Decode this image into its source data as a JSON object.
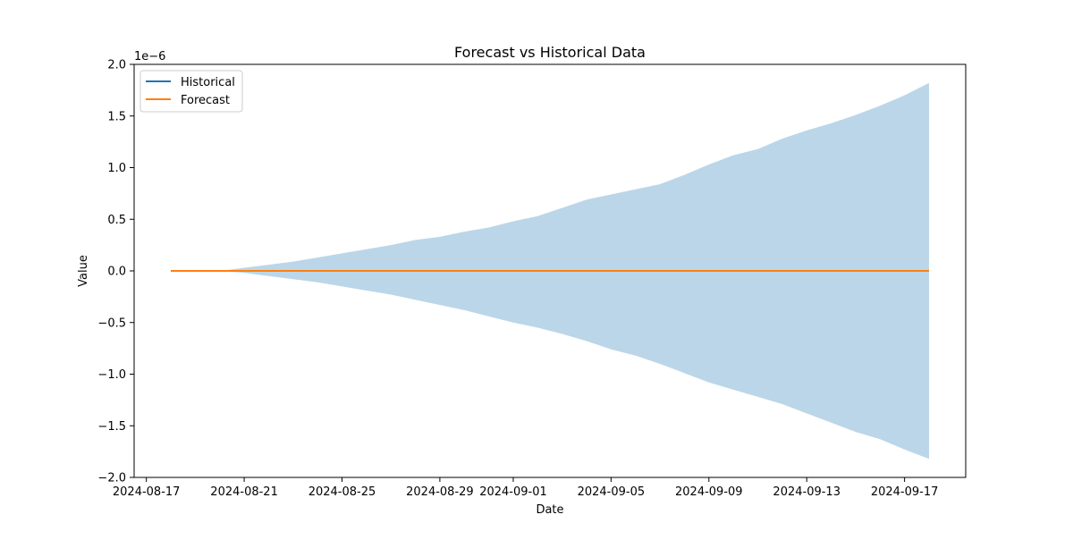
{
  "chart_data": {
    "type": "line",
    "title": "Forecast vs Historical Data",
    "xlabel": "Date",
    "ylabel": "Value",
    "y_offset_text": "1e−6",
    "y_scale_factor": 1e-06,
    "xlim": [
      "2024-08-16T12:00",
      "2024-09-19T12:00"
    ],
    "ylim": [
      -2.0,
      2.0
    ],
    "x_ticks": [
      {
        "date": "2024-08-17",
        "label": "2024-08-17"
      },
      {
        "date": "2024-08-21",
        "label": "2024-08-21"
      },
      {
        "date": "2024-08-25",
        "label": "2024-08-25"
      },
      {
        "date": "2024-08-29",
        "label": "2024-08-29"
      },
      {
        "date": "2024-09-01",
        "label": "2024-09-01"
      },
      {
        "date": "2024-09-05",
        "label": "2024-09-05"
      },
      {
        "date": "2024-09-09",
        "label": "2024-09-09"
      },
      {
        "date": "2024-09-13",
        "label": "2024-09-13"
      },
      {
        "date": "2024-09-17",
        "label": "2024-09-17"
      }
    ],
    "y_ticks": [
      {
        "value": 2.0,
        "label": "2.0"
      },
      {
        "value": 1.5,
        "label": "1.5"
      },
      {
        "value": 1.0,
        "label": "1.0"
      },
      {
        "value": 0.5,
        "label": "0.5"
      },
      {
        "value": 0.0,
        "label": "0.0"
      },
      {
        "value": -0.5,
        "label": "−0.5"
      },
      {
        "value": -1.0,
        "label": "−1.0"
      },
      {
        "value": -1.5,
        "label": "−1.5"
      },
      {
        "value": -2.0,
        "label": "−2.0"
      }
    ],
    "grid": false,
    "legend_position": "top-left",
    "series": [
      {
        "name": "Historical",
        "color": "#1f77b4",
        "x": [
          "2024-08-18",
          "2024-08-19",
          "2024-08-20"
        ],
        "values": [
          0,
          0,
          0
        ]
      },
      {
        "name": "Forecast",
        "color": "#ff7f0e",
        "x": [
          "2024-08-18",
          "2024-09-18"
        ],
        "values": [
          0,
          0
        ]
      }
    ],
    "band": {
      "color": "#1f77b4",
      "opacity": 0.3,
      "x": [
        "2024-08-20",
        "2024-08-21",
        "2024-08-22",
        "2024-08-23",
        "2024-08-24",
        "2024-08-25",
        "2024-08-26",
        "2024-08-27",
        "2024-08-28",
        "2024-08-29",
        "2024-08-30",
        "2024-08-31",
        "2024-09-01",
        "2024-09-02",
        "2024-09-03",
        "2024-09-04",
        "2024-09-05",
        "2024-09-06",
        "2024-09-07",
        "2024-09-08",
        "2024-09-09",
        "2024-09-10",
        "2024-09-11",
        "2024-09-12",
        "2024-09-13",
        "2024-09-14",
        "2024-09-15",
        "2024-09-16",
        "2024-09-17",
        "2024-09-18"
      ],
      "upper": [
        0,
        0.03,
        0.06,
        0.09,
        0.13,
        0.17,
        0.21,
        0.25,
        0.3,
        0.33,
        0.38,
        0.42,
        0.48,
        0.53,
        0.61,
        0.69,
        0.74,
        0.79,
        0.84,
        0.93,
        1.03,
        1.12,
        1.18,
        1.28,
        1.36,
        1.43,
        1.51,
        1.6,
        1.7,
        1.82
      ],
      "lower": [
        0,
        -0.02,
        -0.05,
        -0.08,
        -0.11,
        -0.15,
        -0.19,
        -0.23,
        -0.28,
        -0.33,
        -0.38,
        -0.44,
        -0.5,
        -0.55,
        -0.61,
        -0.68,
        -0.76,
        -0.82,
        -0.9,
        -0.99,
        -1.08,
        -1.15,
        -1.22,
        -1.29,
        -1.38,
        -1.47,
        -1.56,
        -1.63,
        -1.73,
        -1.82
      ]
    }
  }
}
